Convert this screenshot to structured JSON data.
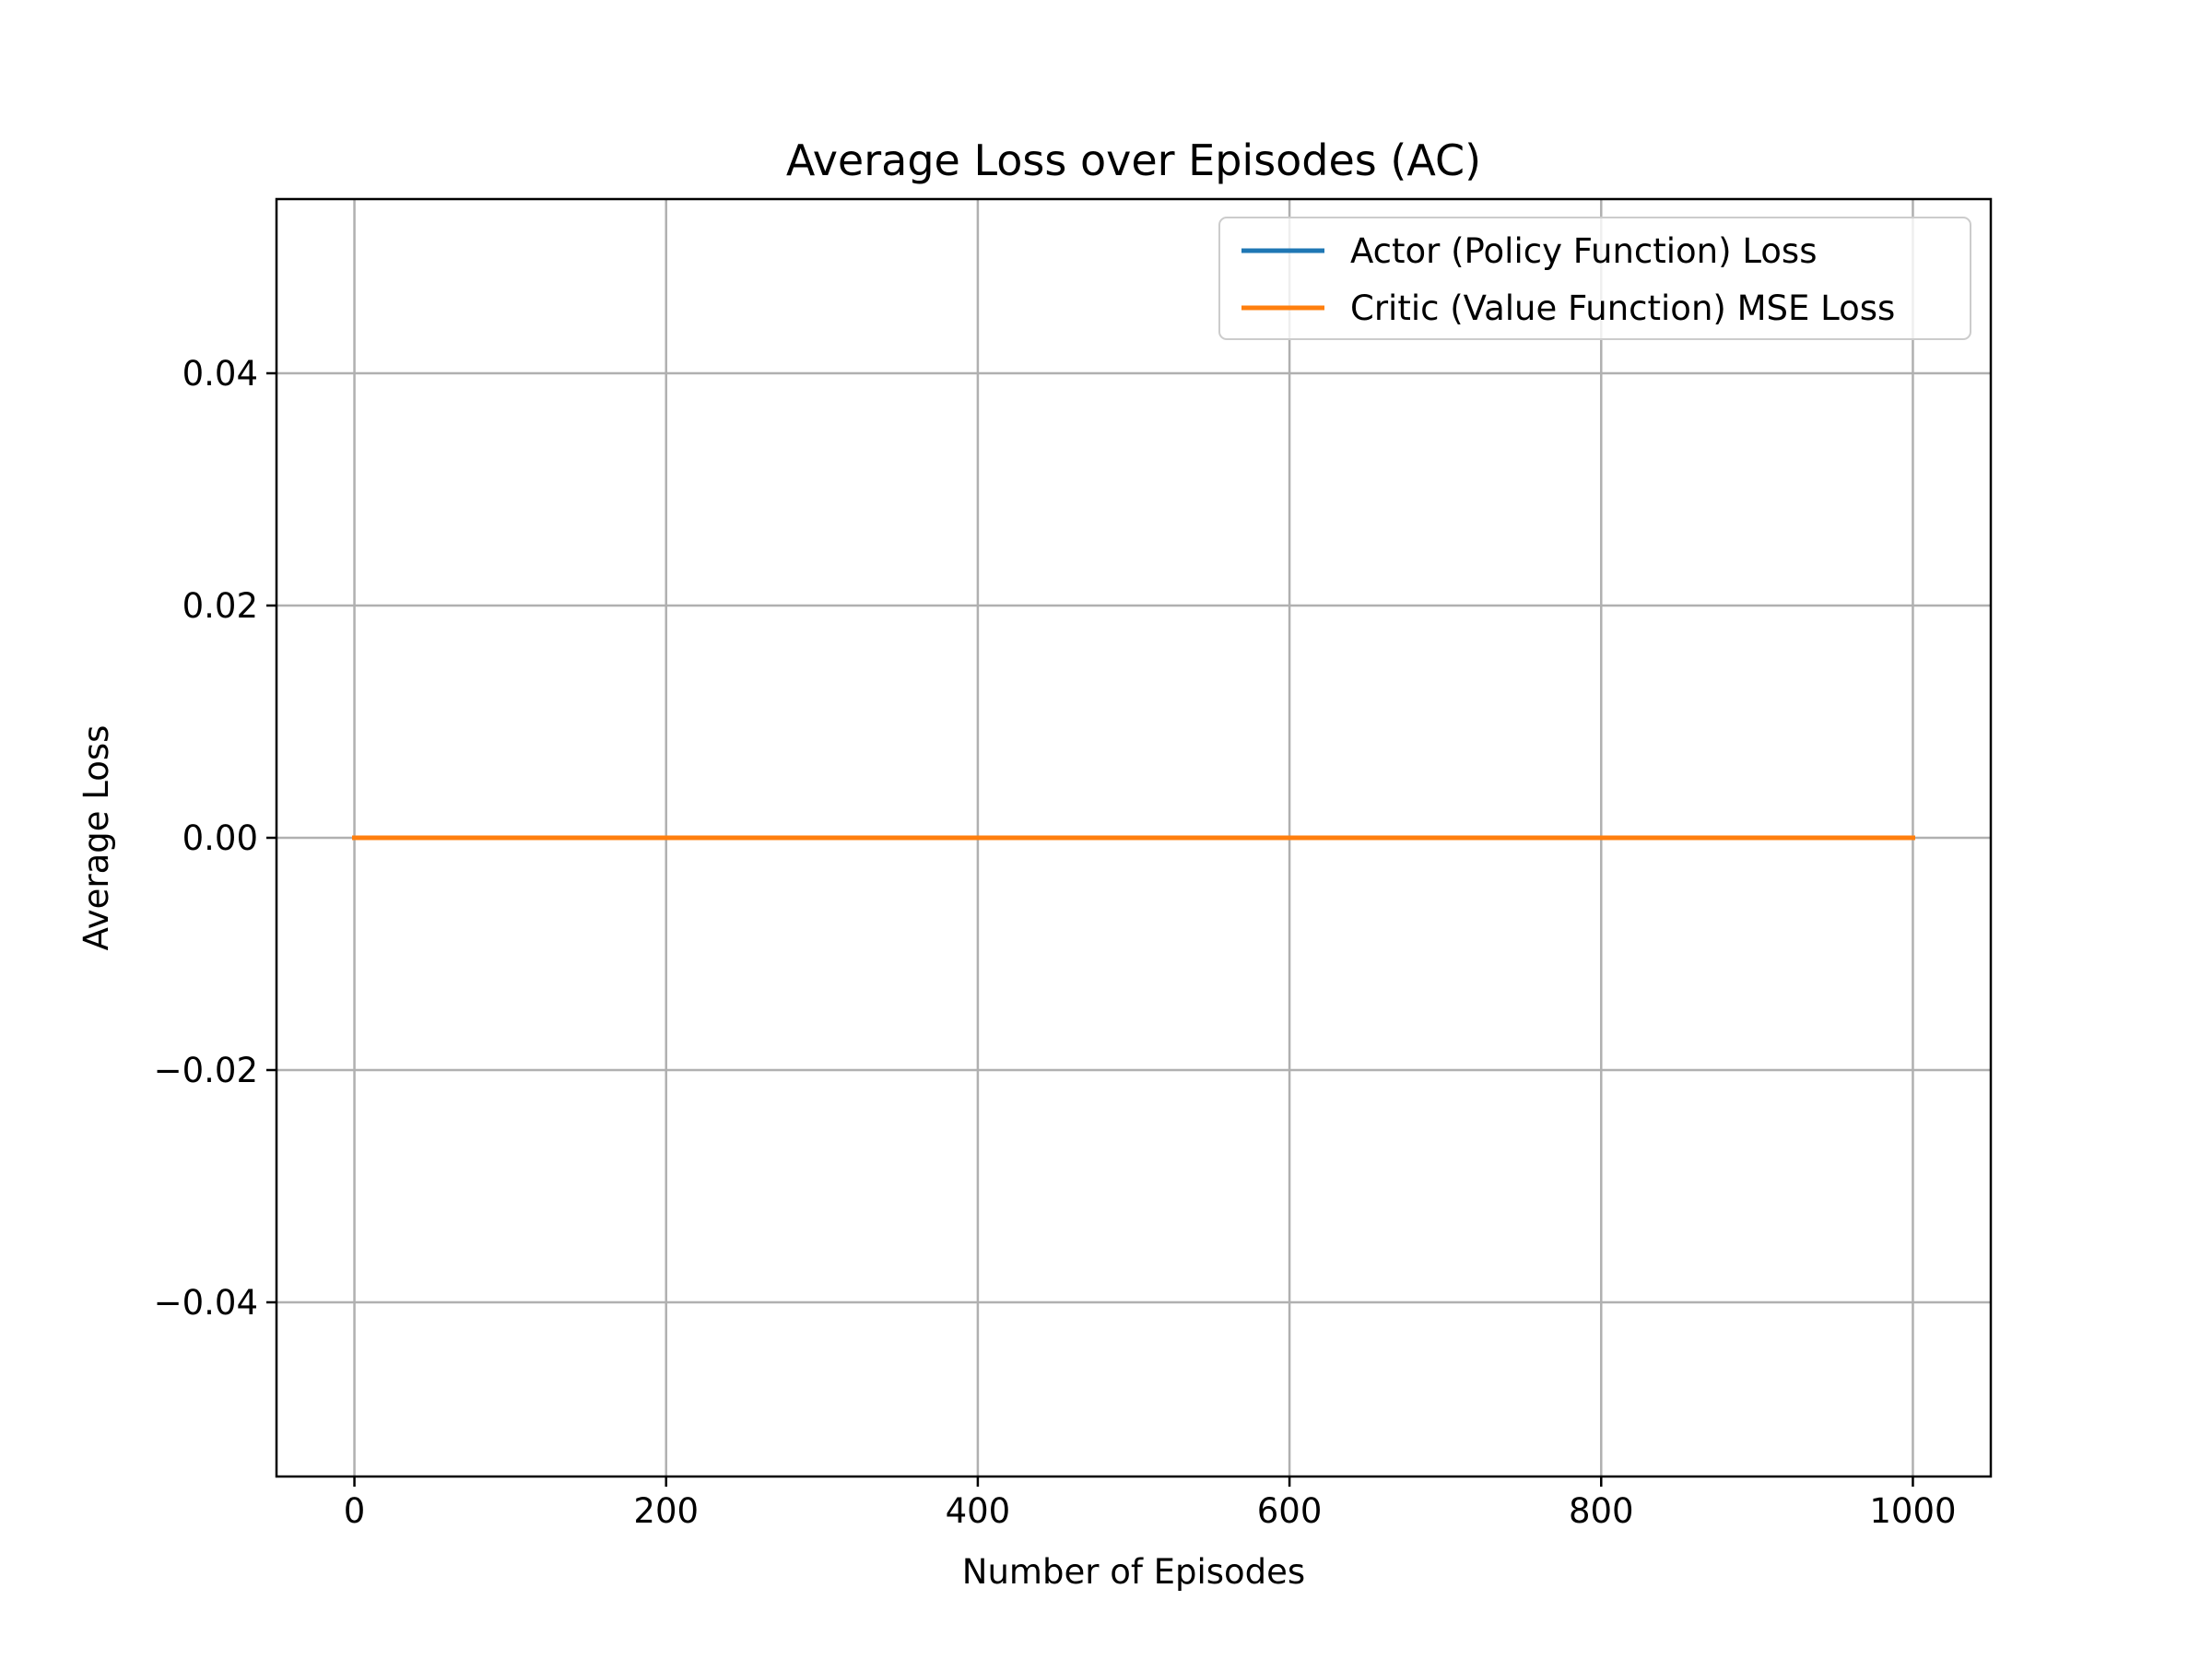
{
  "chart_data": {
    "type": "line",
    "title": "Average Loss over Episodes (AC)",
    "xlabel": "Number of Episodes",
    "ylabel": "Average Loss",
    "xlim": [
      -50,
      1050
    ],
    "ylim": [
      -0.055,
      0.055
    ],
    "x_ticks": [
      0,
      200,
      400,
      600,
      800,
      1000
    ],
    "x_tick_labels": [
      "0",
      "200",
      "400",
      "600",
      "800",
      "1000"
    ],
    "y_ticks": [
      -0.04,
      -0.02,
      0.0,
      0.02,
      0.04
    ],
    "y_tick_labels": [
      "−0.04",
      "−0.02",
      "0.00",
      "0.02",
      "0.04"
    ],
    "grid": true,
    "legend_position": "top-right",
    "series": [
      {
        "name": "Actor (Policy Function) Loss",
        "color": "#1f77b4",
        "x": [
          0,
          1000
        ],
        "y": [
          0.0,
          0.0
        ]
      },
      {
        "name": "Critic (Value Function) MSE Loss",
        "color": "#ff7f0e",
        "x": [
          0,
          1000
        ],
        "y": [
          0.0,
          0.0
        ]
      }
    ]
  }
}
